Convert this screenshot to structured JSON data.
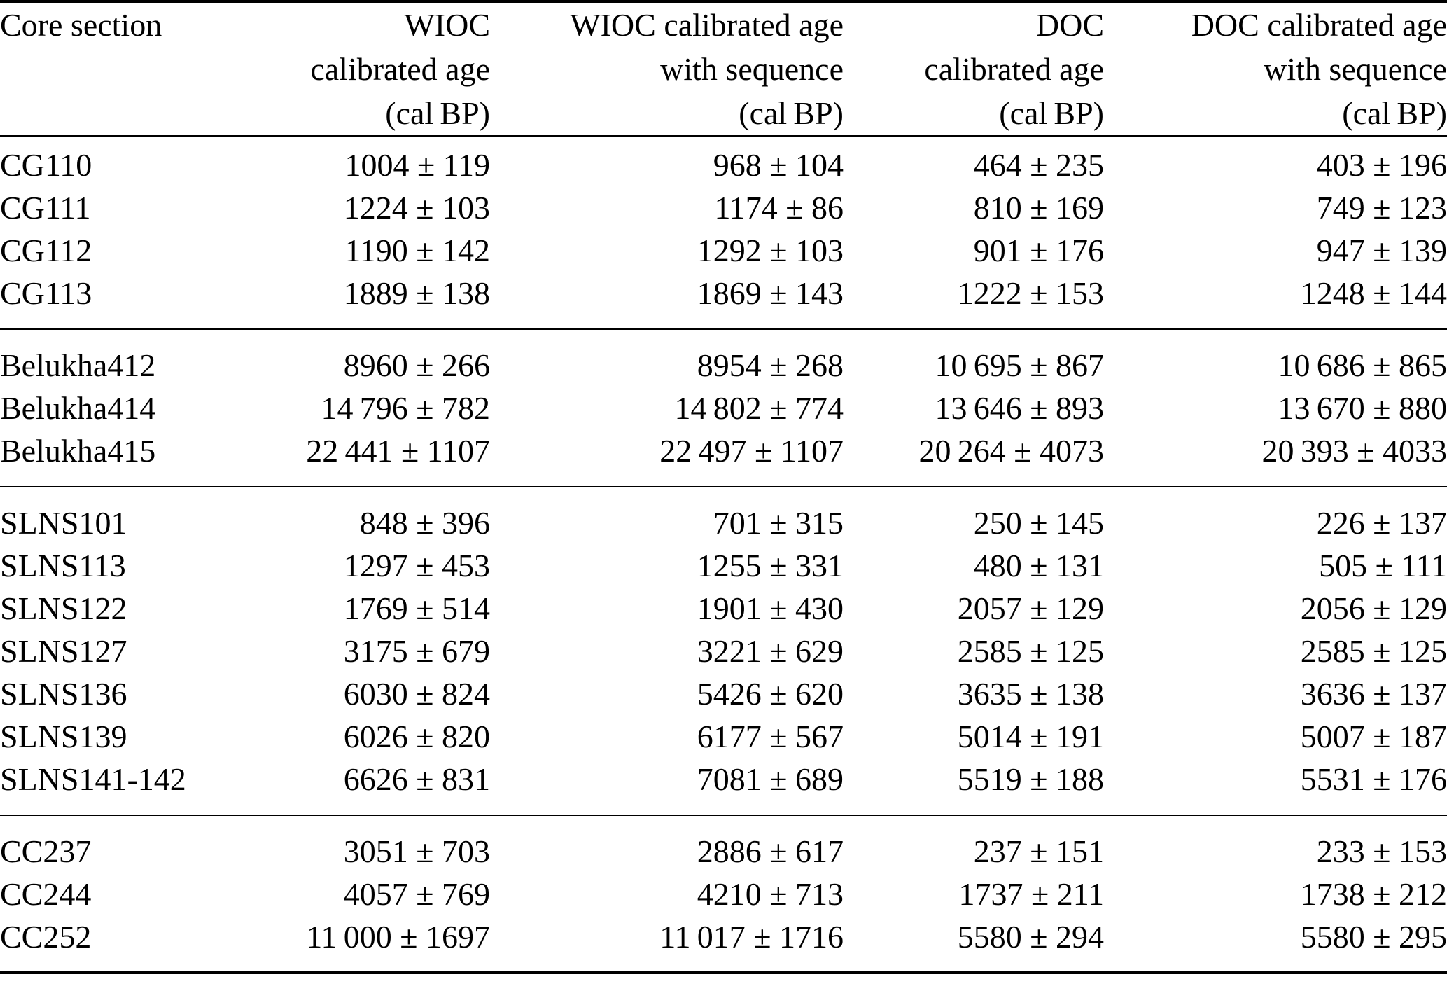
{
  "table": {
    "columns": [
      {
        "id": "core",
        "lines": [
          "Core section"
        ],
        "align": "left"
      },
      {
        "id": "wioc",
        "lines": [
          "WIOC",
          "calibrated age",
          "(cal BP)"
        ],
        "align": "right"
      },
      {
        "id": "wioc_seq",
        "lines": [
          "WIOC calibrated age",
          "with sequence",
          "(cal BP)"
        ],
        "align": "right"
      },
      {
        "id": "doc",
        "lines": [
          "DOC",
          "calibrated age",
          "(cal BP)"
        ],
        "align": "right"
      },
      {
        "id": "doc_seq",
        "lines": [
          "DOC calibrated age",
          "with sequence",
          "(cal BP)"
        ],
        "align": "right"
      }
    ],
    "groups": [
      {
        "rows": [
          [
            "CG110",
            "1004 ± 119",
            "968 ± 104",
            "464 ± 235",
            "403 ± 196"
          ],
          [
            "CG111",
            "1224 ± 103",
            "1174 ± 86",
            "810 ± 169",
            "749 ± 123"
          ],
          [
            "CG112",
            "1190 ± 142",
            "1292 ± 103",
            "901 ± 176",
            "947 ± 139"
          ],
          [
            "CG113",
            "1889 ± 138",
            "1869 ± 143",
            "1222 ± 153",
            "1248 ± 144"
          ]
        ]
      },
      {
        "rows": [
          [
            "Belukha412",
            "8960 ± 266",
            "8954 ± 268",
            "10 695 ± 867",
            "10 686 ± 865"
          ],
          [
            "Belukha414",
            "14 796 ± 782",
            "14 802 ± 774",
            "13 646 ± 893",
            "13 670 ± 880"
          ],
          [
            "Belukha415",
            "22 441 ± 1107",
            "22 497 ± 1107",
            "20 264 ± 4073",
            "20 393 ± 4033"
          ]
        ]
      },
      {
        "rows": [
          [
            "SLNS101",
            "848 ± 396",
            "701 ± 315",
            "250 ± 145",
            "226 ± 137"
          ],
          [
            "SLNS113",
            "1297 ± 453",
            "1255 ± 331",
            "480 ± 131",
            "505 ± 111"
          ],
          [
            "SLNS122",
            "1769 ± 514",
            "1901 ± 430",
            "2057 ± 129",
            "2056 ± 129"
          ],
          [
            "SLNS127",
            "3175 ± 679",
            "3221 ± 629",
            "2585 ± 125",
            "2585 ± 125"
          ],
          [
            "SLNS136",
            "6030 ± 824",
            "5426 ± 620",
            "3635 ± 138",
            "3636 ± 137"
          ],
          [
            "SLNS139",
            "6026 ± 820",
            "6177 ± 567",
            "5014 ± 191",
            "5007 ± 187"
          ],
          [
            "SLNS141-142",
            "6626 ± 831",
            "7081 ± 689",
            "5519 ± 188",
            "5531 ± 176"
          ]
        ]
      },
      {
        "rows": [
          [
            "CC237",
            "3051 ± 703",
            "2886 ± 617",
            "237 ± 151",
            "233 ± 153"
          ],
          [
            "CC244",
            "4057 ± 769",
            "4210 ± 713",
            "1737 ± 211",
            "1738 ± 212"
          ],
          [
            "CC252",
            "11 000 ± 1697",
            "11 017 ± 1716",
            "5580 ± 294",
            "5580 ± 295"
          ]
        ]
      }
    ]
  },
  "colors": {
    "text": "#000000",
    "rule": "#000000",
    "background": "#ffffff"
  }
}
